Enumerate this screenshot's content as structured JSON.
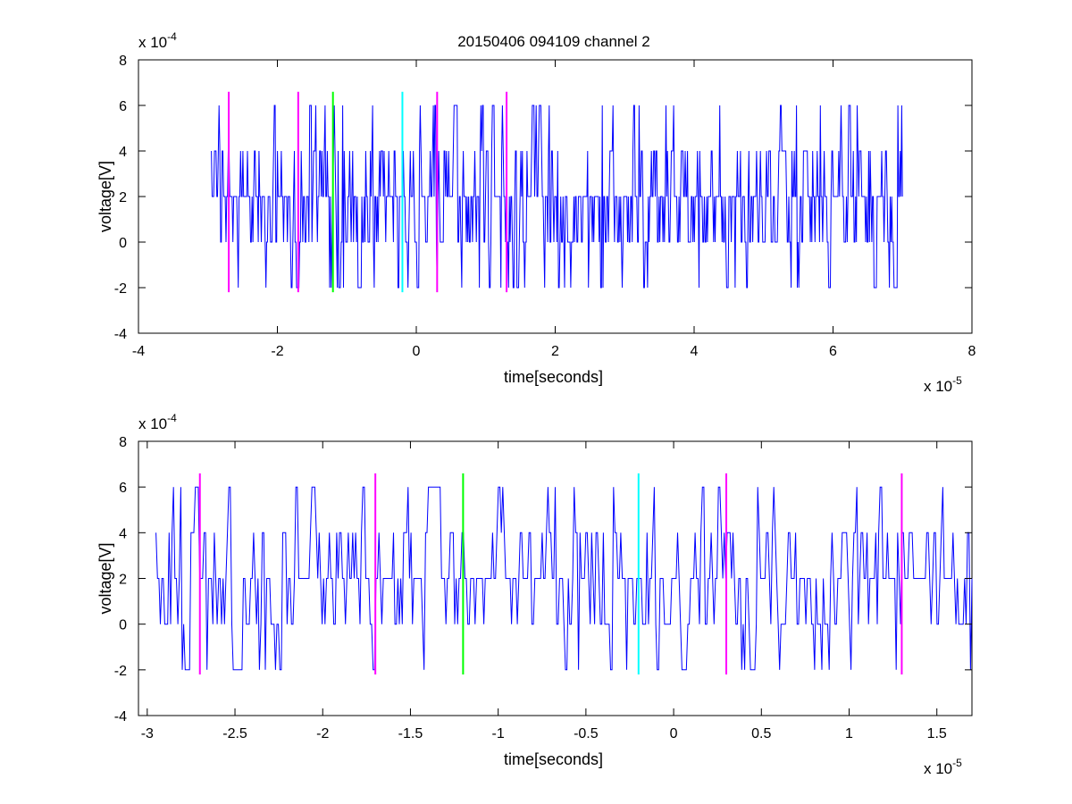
{
  "title": "20150406 094109 channel 2",
  "chart_data": [
    {
      "type": "line",
      "title": "20150406 094109 channel 2",
      "xlabel": "time[seconds]",
      "ylabel": "voltage[V]",
      "xlim": [
        -4e-05,
        8e-05
      ],
      "ylim": [
        -0.0004,
        0.0008
      ],
      "xticks": [
        -4e-05,
        -2e-05,
        0,
        2e-05,
        4e-05,
        6e-05,
        8e-05
      ],
      "yticks": [
        -0.0004,
        -0.0002,
        0,
        0.0002,
        0.0004,
        0.0006,
        0.0008
      ],
      "xtick_labels": [
        "-4",
        "-2",
        "0",
        "2",
        "4",
        "6",
        "8"
      ],
      "ytick_labels": [
        "-4",
        "-2",
        "0",
        "2",
        "4",
        "6",
        "8"
      ],
      "x_multiplier": "x 10",
      "x_multiplier_exp": "-5",
      "y_multiplier": "x 10",
      "y_multiplier_exp": "-4",
      "grid": false,
      "series": [
        {
          "color": "#0000ff",
          "style": "noisy quantized signal, step 2e-4 V",
          "x_start": -2.95e-05,
          "x_end": 7e-05,
          "y_min": -0.0002,
          "y_max": 0.0006,
          "typical_levels": [
            0,
            0.0002,
            0.0004
          ],
          "baseline": 0.0002
        }
      ],
      "markers": [
        {
          "x": -2.7e-05,
          "color": "#ff00ff",
          "y_from": -0.00022,
          "y_to": 0.00066
        },
        {
          "x": -1.7e-05,
          "color": "#ff00ff",
          "y_from": -0.00022,
          "y_to": 0.00066
        },
        {
          "x": -1.2e-05,
          "color": "#00ff00",
          "y_from": -0.00022,
          "y_to": 0.00066
        },
        {
          "x": -2e-06,
          "color": "#00ffff",
          "y_from": -0.00022,
          "y_to": 0.00066
        },
        {
          "x": 3e-06,
          "color": "#ff00ff",
          "y_from": -0.00022,
          "y_to": 0.00066
        },
        {
          "x": 1.3e-05,
          "color": "#ff00ff",
          "y_from": -0.00022,
          "y_to": 0.00066
        }
      ]
    },
    {
      "type": "line",
      "title": "",
      "xlabel": "time[seconds]",
      "ylabel": "voltage[V]",
      "xlim": [
        -3.05e-05,
        1.7e-05
      ],
      "ylim": [
        -0.0004,
        0.0008
      ],
      "xticks": [
        -3e-05,
        -2.5e-05,
        -2e-05,
        -1.5e-05,
        -1e-05,
        -5e-06,
        0,
        5e-06,
        1e-05,
        1.5e-05
      ],
      "yticks": [
        -0.0004,
        -0.0002,
        0,
        0.0002,
        0.0004,
        0.0006,
        0.0008
      ],
      "xtick_labels": [
        "-3",
        "-2.5",
        "-2",
        "-1.5",
        "-1",
        "-0.5",
        "0",
        "0.5",
        "1",
        "1.5"
      ],
      "ytick_labels": [
        "-4",
        "-2",
        "0",
        "2",
        "4",
        "6",
        "8"
      ],
      "x_multiplier": "x 10",
      "x_multiplier_exp": "-5",
      "y_multiplier": "x 10",
      "y_multiplier_exp": "-4",
      "grid": false,
      "series": [
        {
          "color": "#0000ff",
          "style": "noisy quantized signal, step 2e-4 V",
          "x_start": -2.95e-05,
          "x_end": 1.7e-05,
          "y_min": -0.0002,
          "y_max": 0.0006,
          "typical_levels": [
            0,
            0.0002,
            0.0004
          ],
          "baseline": 0.0002
        }
      ],
      "markers": [
        {
          "x": -2.7e-05,
          "color": "#ff00ff",
          "y_from": -0.00022,
          "y_to": 0.00066
        },
        {
          "x": -1.7e-05,
          "color": "#ff00ff",
          "y_from": -0.00022,
          "y_to": 0.00066
        },
        {
          "x": -1.2e-05,
          "color": "#00ff00",
          "y_from": -0.00022,
          "y_to": 0.00066
        },
        {
          "x": -2e-06,
          "color": "#00ffff",
          "y_from": -0.00022,
          "y_to": 0.00066
        },
        {
          "x": 3e-06,
          "color": "#ff00ff",
          "y_from": -0.00022,
          "y_to": 0.00066
        },
        {
          "x": 1.3e-05,
          "color": "#ff00ff",
          "y_from": -0.00022,
          "y_to": 0.00066
        }
      ]
    }
  ]
}
